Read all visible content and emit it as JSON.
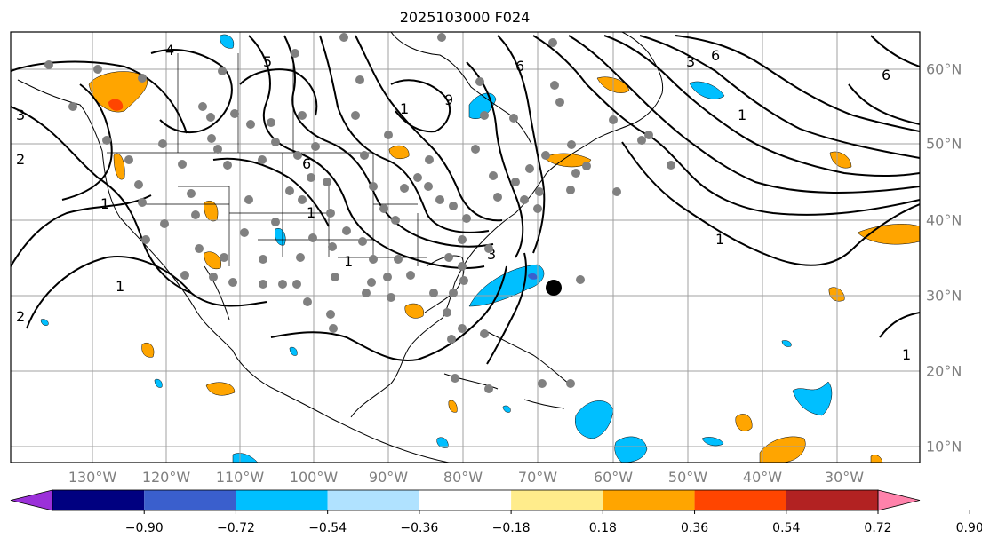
{
  "title": "2025103000 F024",
  "lon_labels": [
    "130°W",
    "120°W",
    "110°W",
    "100°W",
    "90°W",
    "80°W",
    "70°W",
    "60°W",
    "50°W",
    "40°W",
    "30°W"
  ],
  "lat_labels": [
    "60°N",
    "50°N",
    "40°N",
    "30°N",
    "20°N",
    "10°N"
  ],
  "contour_labels": [
    "4",
    "5",
    "6",
    "1",
    "1",
    "3",
    "6",
    "9",
    "3",
    "6",
    "1",
    "6",
    "1",
    "1",
    "2",
    "3",
    "2",
    "1",
    "1",
    "1"
  ],
  "colorbar": {
    "ticks": [
      "−0.90",
      "−0.72",
      "−0.54",
      "−0.36",
      "−0.18",
      "0.18",
      "0.36",
      "0.54",
      "0.72",
      "0.90"
    ],
    "colors": [
      "#9b30d9",
      "#000080",
      "#3a5fcd",
      "#00bfff",
      "#b0e2ff",
      "#ffffff",
      "#ffec8b",
      "#ffa500",
      "#ff4500",
      "#b22222",
      "#ff82ab"
    ]
  },
  "fill_colors": {
    "orange": "#ffa500",
    "blue": "#00bfff",
    "red": "#ff4500"
  }
}
